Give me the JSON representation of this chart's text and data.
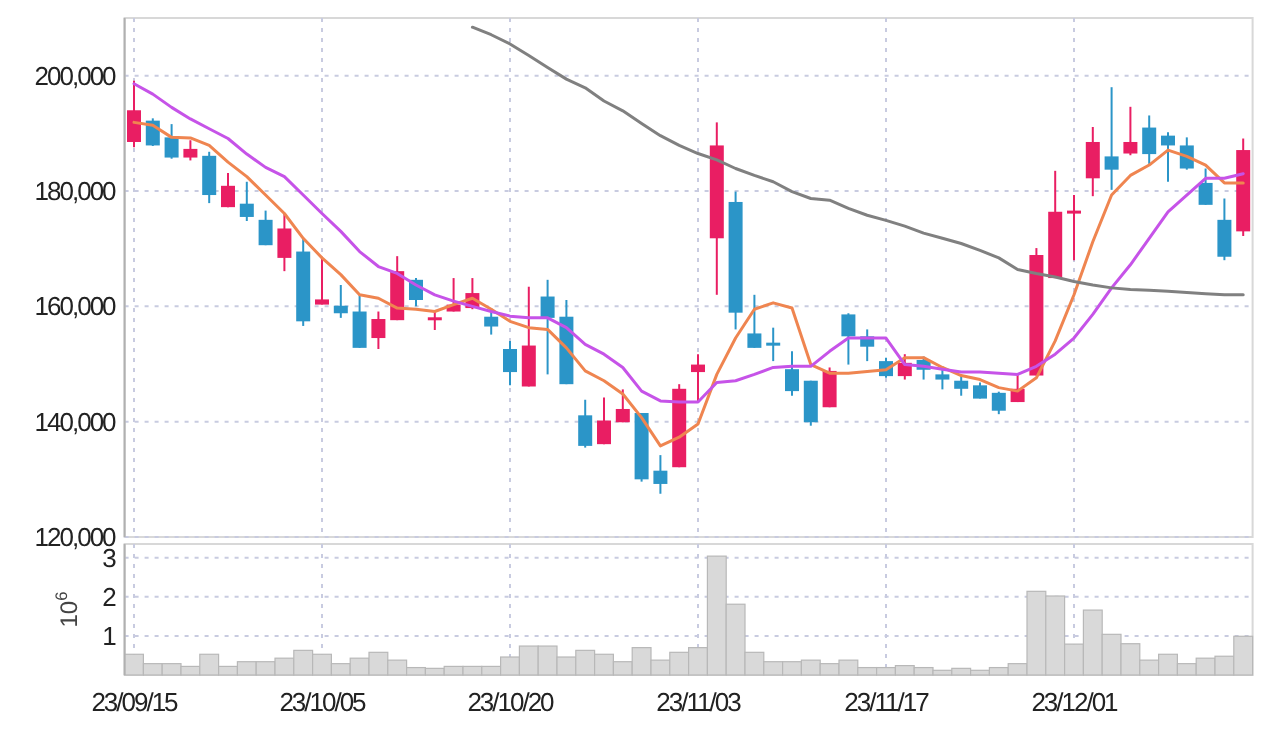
{
  "chart_data": [
    {
      "type": "candlestick",
      "categories": [
        null,
        null,
        null,
        null,
        null,
        null,
        null,
        null,
        null,
        null,
        null,
        null,
        null,
        null,
        null,
        null,
        null,
        null,
        null,
        null,
        null,
        null,
        null,
        null,
        null,
        null,
        null,
        null,
        null,
        null,
        null,
        null,
        null,
        null,
        null,
        null,
        null,
        null,
        null,
        null,
        null,
        null,
        null,
        null,
        null,
        null,
        null,
        null,
        null,
        null,
        null,
        null,
        null,
        null,
        null,
        null,
        null,
        null,
        null,
        null
      ],
      "ohlc": [
        [
          188500,
          199100,
          187600,
          194000
        ],
        [
          192200,
          192600,
          187800,
          187900
        ],
        [
          189300,
          191600,
          185600,
          185800
        ],
        [
          185800,
          188800,
          185300,
          187300
        ],
        [
          186100,
          186800,
          177900,
          179300
        ],
        [
          177200,
          183100,
          177200,
          180900
        ],
        [
          177800,
          181600,
          174800,
          175500
        ],
        [
          175000,
          176600,
          170600,
          170600
        ],
        [
          168400,
          176100,
          166100,
          173500
        ],
        [
          169500,
          171800,
          156600,
          157400
        ],
        [
          160300,
          168600,
          160300,
          161200
        ],
        [
          160100,
          163700,
          158000,
          158800
        ],
        [
          159100,
          162000,
          152800,
          152800
        ],
        [
          154500,
          159100,
          152600,
          157800
        ],
        [
          157600,
          168700,
          157600,
          166100
        ],
        [
          164600,
          164900,
          160000,
          161100
        ],
        [
          157900,
          159100,
          155900,
          158100
        ],
        [
          159100,
          164900,
          159100,
          160300
        ],
        [
          159700,
          164900,
          159500,
          162300
        ],
        [
          158200,
          159700,
          155100,
          156500
        ],
        [
          152600,
          154000,
          146300,
          148600
        ],
        [
          146100,
          163400,
          146100,
          153200
        ],
        [
          161700,
          164600,
          148200,
          158000
        ],
        [
          158200,
          161100,
          146500,
          146500
        ],
        [
          141100,
          143800,
          135500,
          135800
        ],
        [
          136100,
          144200,
          136100,
          140200
        ],
        [
          139900,
          145600,
          139900,
          142200
        ],
        [
          141500,
          141500,
          129600,
          130000
        ],
        [
          131500,
          134200,
          127500,
          129200
        ],
        [
          132100,
          146500,
          132100,
          145700
        ],
        [
          148600,
          151700,
          143600,
          149900
        ],
        [
          171800,
          191900,
          162000,
          187900
        ],
        [
          178100,
          179900,
          156000,
          158900
        ],
        [
          155300,
          162000,
          152800,
          152800
        ],
        [
          153700,
          156300,
          150500,
          153500
        ],
        [
          149100,
          152200,
          144500,
          145300
        ],
        [
          147100,
          147100,
          139300,
          139900
        ],
        [
          142500,
          149400,
          142500,
          148800
        ],
        [
          158600,
          158800,
          149900,
          154800
        ],
        [
          154800,
          156000,
          150500,
          153000
        ],
        [
          150500,
          151100,
          147600,
          147900
        ],
        [
          147900,
          151700,
          147300,
          150200
        ],
        [
          150700,
          151300,
          147300,
          149000
        ],
        [
          148200,
          149600,
          145600,
          147300
        ],
        [
          147100,
          148000,
          144500,
          145700
        ],
        [
          146300,
          146800,
          144000,
          144000
        ],
        [
          145000,
          145200,
          141300,
          141900
        ],
        [
          143400,
          148200,
          143400,
          145700
        ],
        [
          148000,
          170100,
          148000,
          168900
        ],
        [
          164900,
          183500,
          164900,
          176400
        ],
        [
          176300,
          179300,
          168000,
          176600
        ],
        [
          182200,
          191100,
          179100,
          188500
        ],
        [
          186000,
          198000,
          180200,
          183700
        ],
        [
          186500,
          194600,
          186200,
          188500
        ],
        [
          191000,
          193100,
          184700,
          186400
        ],
        [
          189600,
          190200,
          181600,
          187900
        ],
        [
          187900,
          189300,
          183700,
          183900
        ],
        [
          181400,
          183900,
          177600,
          177600
        ],
        [
          175000,
          178700,
          168000,
          168600
        ],
        [
          173000,
          189100,
          172200,
          187100
        ]
      ],
      "series": [
        {
          "type": "line",
          "color": "#ef8550",
          "values": [
            191900,
            191400,
            189300,
            189200,
            187900,
            185000,
            182500,
            179300,
            176100,
            171800,
            168400,
            165500,
            162000,
            161400,
            159700,
            159500,
            159100,
            160300,
            161400,
            159500,
            157400,
            156300,
            156000,
            152800,
            148800,
            147100,
            144800,
            140700,
            135800,
            137300,
            139600,
            148200,
            154500,
            159500,
            160600,
            159700,
            149900,
            148400,
            148400,
            148700,
            149000,
            151100,
            151100,
            149400,
            148000,
            147300,
            145900,
            145300,
            147600,
            154000,
            162000,
            171200,
            179300,
            182700,
            184500,
            187100,
            186000,
            184500,
            181400,
            181400
          ]
        },
        {
          "type": "line",
          "color": "#c653e8",
          "values": [
            198600,
            196800,
            194500,
            192500,
            190800,
            189100,
            186400,
            184100,
            182500,
            179300,
            176100,
            173000,
            169500,
            166900,
            165700,
            163700,
            162000,
            160900,
            160000,
            159100,
            158300,
            158000,
            158000,
            156300,
            153400,
            151700,
            149400,
            145300,
            143600,
            143400,
            143400,
            146800,
            147100,
            148200,
            149400,
            149600,
            149600,
            152200,
            154500,
            154500,
            154500,
            149900,
            149600,
            149100,
            148600,
            148600,
            148400,
            148200,
            149600,
            151700,
            154500,
            158600,
            163200,
            167200,
            171800,
            176400,
            179300,
            182200,
            182200,
            183000
          ]
        },
        {
          "type": "line",
          "color": "#808080",
          "values": [
            null,
            null,
            null,
            null,
            null,
            null,
            null,
            null,
            null,
            null,
            null,
            null,
            null,
            null,
            null,
            null,
            null,
            null,
            208400,
            207100,
            205500,
            203500,
            201400,
            199400,
            197900,
            195600,
            193900,
            191700,
            189600,
            187900,
            186500,
            185400,
            183900,
            182700,
            181600,
            179900,
            178700,
            178400,
            177000,
            175800,
            174900,
            173900,
            172700,
            171800,
            170900,
            169700,
            168400,
            166400,
            165700,
            165100,
            164300,
            163700,
            163200,
            162900,
            162800,
            162600,
            162400,
            162200,
            162000,
            162000
          ]
        }
      ],
      "ylim": [
        120000,
        210000
      ],
      "yticks": [
        {
          "value": 120000,
          "label": "120,000"
        },
        {
          "value": 140000,
          "label": "140,000"
        },
        {
          "value": 160000,
          "label": "160,000"
        },
        {
          "value": 180000,
          "label": "180,000"
        },
        {
          "value": 200000,
          "label": "200,000"
        }
      ],
      "grid": true,
      "tick_labels": "y"
    },
    {
      "type": "bar",
      "categories": [
        "23/09/15",
        null,
        null,
        null,
        null,
        null,
        null,
        null,
        null,
        null,
        "23/10/05",
        null,
        null,
        null,
        null,
        null,
        null,
        null,
        null,
        null,
        "23/10/20",
        null,
        null,
        null,
        null,
        null,
        null,
        null,
        null,
        null,
        "23/11/03",
        null,
        null,
        null,
        null,
        null,
        null,
        null,
        null,
        null,
        "23/11/17",
        null,
        null,
        null,
        null,
        null,
        null,
        null,
        null,
        null,
        "23/12/01",
        null,
        null,
        null,
        null,
        null,
        null,
        null,
        null,
        null
      ],
      "values": [
        0.53,
        0.29,
        0.29,
        0.22,
        0.53,
        0.22,
        0.34,
        0.34,
        0.43,
        0.63,
        0.53,
        0.29,
        0.43,
        0.58,
        0.38,
        0.19,
        0.17,
        0.22,
        0.22,
        0.22,
        0.46,
        0.74,
        0.74,
        0.46,
        0.63,
        0.53,
        0.34,
        0.7,
        0.38,
        0.58,
        0.7,
        3.04,
        1.81,
        0.58,
        0.34,
        0.34,
        0.38,
        0.29,
        0.38,
        0.19,
        0.19,
        0.24,
        0.19,
        0.12,
        0.17,
        0.12,
        0.19,
        0.29,
        2.14,
        2.02,
        0.79,
        1.66,
        1.04,
        0.8,
        0.38,
        0.53,
        0.29,
        0.43,
        0.48,
        0.99
      ],
      "color": "#d9d9d9",
      "ylabel": "10$^{6}$",
      "ylim": [
        0,
        3.35
      ],
      "yticks": [
        1,
        2,
        3
      ],
      "grid": true
    }
  ]
}
